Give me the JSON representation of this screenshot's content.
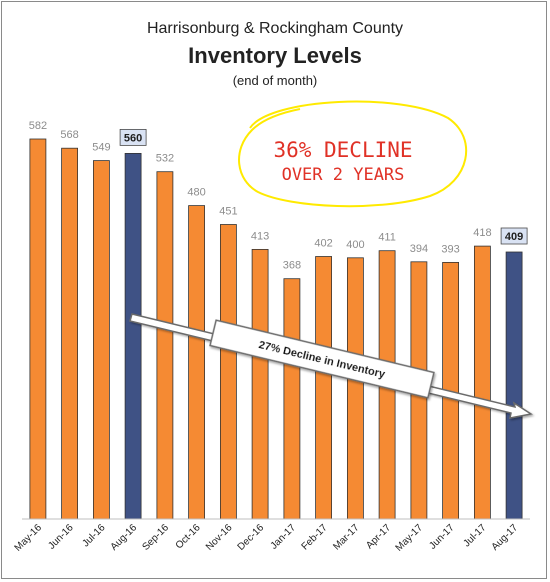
{
  "chart_data": {
    "type": "bar",
    "title_line1": "Harrisonburg & Rockingham County",
    "title_line2": "Inventory Levels",
    "subtitle": "(end of month)",
    "categories": [
      "May-16",
      "Jun-16",
      "Jul-16",
      "Aug-16",
      "Sep-16",
      "Oct-16",
      "Nov-16",
      "Dec-16",
      "Jan-17",
      "Feb-17",
      "Mar-17",
      "Apr-17",
      "May-17",
      "Jun-17",
      "Jul-17",
      "Aug-17"
    ],
    "values": [
      582,
      568,
      549,
      560,
      532,
      480,
      451,
      413,
      368,
      402,
      400,
      411,
      394,
      393,
      418,
      409
    ],
    "highlighted": [
      "Aug-16",
      "Aug-17"
    ],
    "ylim": [
      0,
      600
    ],
    "bar_color": "#f58a33",
    "highlight_color": "#3f5285",
    "grid": false,
    "annotations": {
      "arrow_label": "27% Decline in Inventory",
      "handwritten_line1": "36% DECLINE",
      "handwritten_line2": "OVER 2 YEARS",
      "handwritten_color": "#e03126",
      "circle_color": "#ffea00"
    }
  }
}
